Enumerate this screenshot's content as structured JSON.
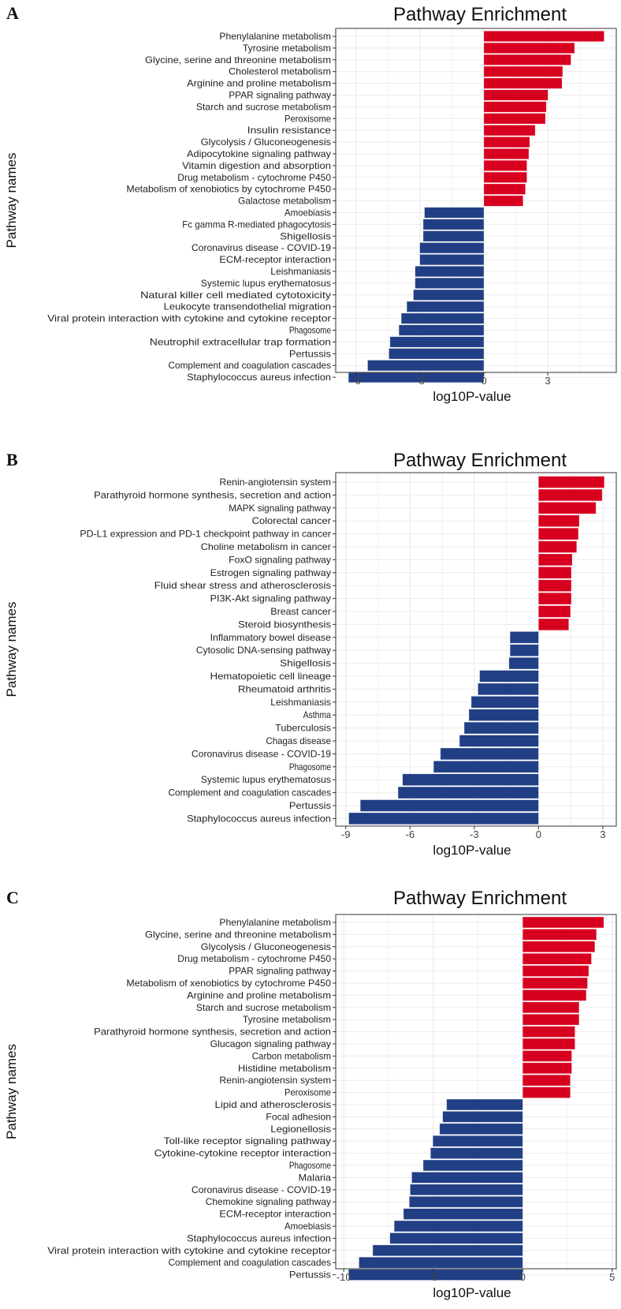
{
  "colors": {
    "up": "#d7001f",
    "down": "#213f85",
    "grid": "#ebebeb",
    "border": "#555555"
  },
  "chart_data": [
    {
      "type": "bar",
      "orientation": "horizontal",
      "panel": "A",
      "title": "Pathway Enrichment",
      "xlabel": "log10P-value",
      "ylabel": "Pathway names",
      "xlim": [
        -6.96,
        6.22
      ],
      "xticks": [
        -6,
        -3,
        0,
        3
      ],
      "grid": true,
      "categories": [
        "Phenylalanine metabolism",
        "Tyrosine metabolism",
        "Glycine, serine and threonine metabolism",
        "Cholesterol metabolism",
        "Arginine and proline metabolism",
        "PPAR signaling pathway",
        "Starch and sucrose metabolism",
        "Peroxisome",
        "Insulin resistance",
        "Glycolysis / Gluconeogenesis",
        "Adipocytokine signaling pathway",
        "Vitamin digestion and absorption",
        "Drug metabolism - cytochrome P450",
        "Metabolism of xenobiotics by cytochrome P450",
        "Galactose metabolism",
        "Amoebiasis",
        "Fc gamma R-mediated phagocytosis",
        "Shigellosis",
        "Coronavirus disease - COVID-19",
        "ECM-receptor interaction",
        "Leishmaniasis",
        "Systemic lupus erythematosus",
        "Natural killer cell mediated cytotoxicity",
        "Leukocyte transendothelial migration",
        "Viral protein interaction with cytokine and cytokine receptor",
        "Phagosome",
        "Neutrophil extracellular trap formation",
        "Pertussis",
        "Complement and coagulation cascades",
        "Staphylococcus aureus infection"
      ],
      "values": [
        5.65,
        4.26,
        4.09,
        3.7,
        3.67,
        3.01,
        2.93,
        2.89,
        2.41,
        2.15,
        2.11,
        2.02,
        2.02,
        1.95,
        1.84,
        -2.79,
        -2.85,
        -2.85,
        -3.01,
        -3.01,
        -3.23,
        -3.23,
        -3.31,
        -3.62,
        -3.88,
        -3.99,
        -4.41,
        -4.46,
        -5.46,
        -6.36
      ]
    },
    {
      "type": "bar",
      "orientation": "horizontal",
      "panel": "B",
      "title": "Pathway Enrichment",
      "xlabel": "log10P-value",
      "ylabel": "Pathway names",
      "xlim": [
        -9.47,
        3.63
      ],
      "xticks": [
        -9,
        -6,
        -3,
        0,
        3
      ],
      "grid": true,
      "categories": [
        "Renin-angiotensin system",
        "Parathyroid hormone synthesis, secretion and action",
        "MAPK signaling pathway",
        "Colorectal cancer",
        "PD-L1 expression and PD-1 checkpoint pathway in cancer",
        "Choline metabolism in cancer",
        "FoxO signaling pathway",
        "Estrogen signaling pathway",
        "Fluid shear stress and atherosclerosis",
        "PI3K-Akt signaling pathway",
        "Breast cancer",
        "Steroid biosynthesis",
        "Inflammatory bowel disease",
        "Cytosolic DNA-sensing pathway",
        "Shigellosis",
        "Hematopoietic cell lineage",
        "Rheumatoid arthritis",
        "Leishmaniasis",
        "Asthma",
        "Tuberculosis",
        "Chagas disease",
        "Coronavirus disease - COVID-19",
        "Phagosome",
        "Systemic lupus erythematosus",
        "Complement and coagulation cascades",
        "Pertussis",
        "Staphylococcus aureus infection"
      ],
      "values": [
        3.07,
        2.97,
        2.68,
        1.9,
        1.86,
        1.78,
        1.57,
        1.53,
        1.53,
        1.53,
        1.49,
        1.41,
        -1.33,
        -1.33,
        -1.38,
        -2.75,
        -2.83,
        -3.14,
        -3.25,
        -3.47,
        -3.69,
        -4.58,
        -4.9,
        -6.35,
        -6.56,
        -8.32,
        -8.86
      ]
    },
    {
      "type": "bar",
      "orientation": "horizontal",
      "panel": "C",
      "title": "Pathway Enrichment",
      "xlabel": "log10P-value",
      "ylabel": "Pathway names",
      "xlim": [
        -10.45,
        5.23
      ],
      "xticks": [
        -10,
        -5,
        0,
        5
      ],
      "grid": true,
      "categories": [
        "Phenylalanine metabolism",
        "Glycine, serine and threonine metabolism",
        "Glycolysis / Gluconeogenesis",
        "Drug metabolism - cytochrome P450",
        "PPAR signaling pathway",
        "Metabolism of xenobiotics by cytochrome P450",
        "Arginine and proline metabolism",
        "Starch and sucrose metabolism",
        "Tyrosine metabolism",
        "Parathyroid hormone synthesis, secretion and action",
        "Glucagon signaling pathway",
        "Carbon metabolism",
        "Histidine metabolism",
        "Renin-angiotensin system",
        "Peroxisome",
        "Lipid and atherosclerosis",
        "Focal adhesion",
        "Legionellosis",
        "Toll-like receptor signaling pathway",
        "Cytokine-cytokine receptor interaction",
        "Phagosome",
        "Malaria",
        "Coronavirus disease - COVID-19",
        "Chemokine signaling pathway",
        "ECM-receptor interaction",
        "Amoebiasis",
        "Staphylococcus aureus infection",
        "Viral protein interaction with cytokine and cytokine receptor",
        "Complement and coagulation cascades",
        "Pertussis"
      ],
      "values": [
        4.53,
        4.12,
        4.03,
        3.84,
        3.69,
        3.62,
        3.55,
        3.15,
        3.15,
        2.92,
        2.92,
        2.74,
        2.74,
        2.66,
        2.66,
        -4.25,
        -4.47,
        -4.64,
        -5.02,
        -5.15,
        -5.56,
        -6.2,
        -6.29,
        -6.34,
        -6.66,
        -7.18,
        -7.42,
        -8.38,
        -9.15,
        -9.73
      ]
    }
  ]
}
